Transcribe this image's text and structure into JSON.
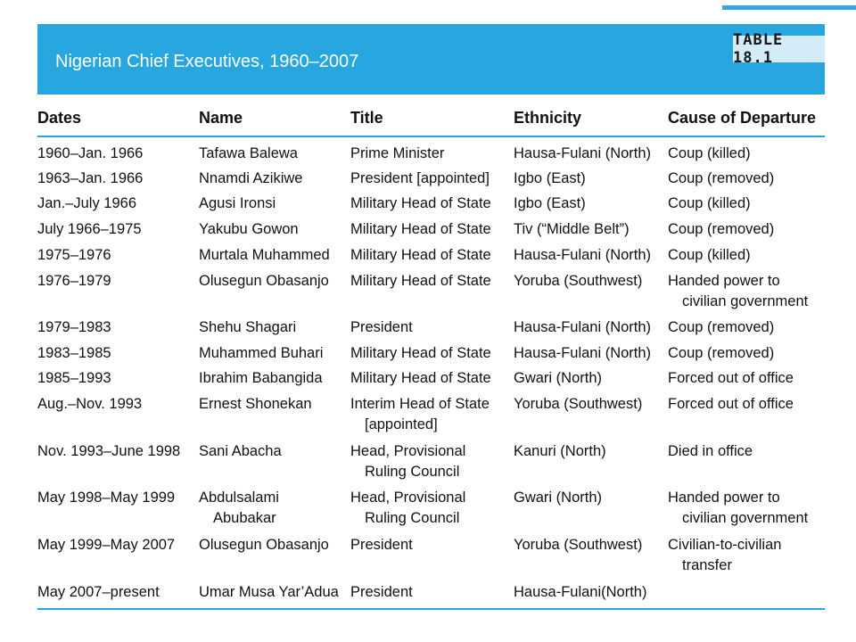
{
  "banner": {
    "title": "Nigerian Chief Executives, 1960–2007",
    "table_label": "TABLE 18.1"
  },
  "table": {
    "headers": [
      "Dates",
      "Name",
      "Title",
      "Ethnicity",
      "Cause of Departure"
    ],
    "rows": [
      {
        "dates": "1960–Jan. 1966",
        "name": "Tafawa Balewa",
        "title": "Prime Minister",
        "ethnicity": "Hausa-Fulani (North)",
        "cause": "Coup (killed)"
      },
      {
        "dates": "1963–Jan. 1966",
        "name": "Nnamdi Azikiwe",
        "title": "President [appointed]",
        "ethnicity": "Igbo (East)",
        "cause": "Coup (removed)"
      },
      {
        "dates": "Jan.–July 1966",
        "name": "Agusi Ironsi",
        "title": "Military Head of State",
        "ethnicity": "Igbo (East)",
        "cause": "Coup (killed)"
      },
      {
        "dates": "July 1966–1975",
        "name": "Yakubu Gowon",
        "title": "Military Head of State",
        "ethnicity": "Tiv (“Middle Belt”)",
        "cause": "Coup (removed)"
      },
      {
        "dates": "1975–1976",
        "name": "Murtala Muhammed",
        "title": "Military Head of State",
        "ethnicity": "Hausa-Fulani (North)",
        "cause": "Coup (killed)"
      },
      {
        "dates": "1976–1979",
        "name": "Olusegun Obasanjo",
        "title": "Military Head of State",
        "ethnicity": "Yoruba (Southwest)",
        "cause": "Handed power to",
        "cause_2": "civilian government"
      },
      {
        "dates": "1979–1983",
        "name": "Shehu Shagari",
        "title": "President",
        "ethnicity": "Hausa-Fulani (North)",
        "cause": "Coup (removed)"
      },
      {
        "dates": "1983–1985",
        "name": "Muhammed Buhari",
        "title": "Military Head of State",
        "ethnicity": "Hausa-Fulani (North)",
        "cause": "Coup (removed)"
      },
      {
        "dates": "1985–1993",
        "name": "Ibrahim Babangida",
        "title": "Military Head of State",
        "ethnicity": "Gwari (North)",
        "cause": "Forced out of office"
      },
      {
        "dates": "Aug.–Nov. 1993",
        "name": "Ernest Shonekan",
        "title": "Interim Head of State",
        "title_2": "[appointed]",
        "ethnicity": "Yoruba (Southwest)",
        "cause": "Forced out of office"
      },
      {
        "dates": "Nov. 1993–June 1998",
        "name": "Sani Abacha",
        "title": "Head, Provisional",
        "title_2": "Ruling Council",
        "ethnicity": "Kanuri (North)",
        "cause": "Died in office"
      },
      {
        "dates": "May 1998–May 1999",
        "name": "Abdulsalami",
        "name_2": "Abubakar",
        "title": "Head, Provisional",
        "title_2": "Ruling Council",
        "ethnicity": "Gwari (North)",
        "cause": "Handed power to",
        "cause_2": "civilian government"
      },
      {
        "dates": "May 1999–May 2007",
        "name": "Olusegun Obasanjo",
        "title": "President",
        "ethnicity": "Yoruba (Southwest)",
        "cause": "Civilian-to-civilian",
        "cause_2": "transfer"
      },
      {
        "dates": "May 2007–present",
        "name": "Umar Musa Yar’Adua",
        "title": "President",
        "ethnicity": "Hausa-Fulani(North)",
        "cause": ""
      }
    ]
  },
  "colors": {
    "accent": "#27a6df",
    "tag_bg": "#d3ecf8"
  }
}
